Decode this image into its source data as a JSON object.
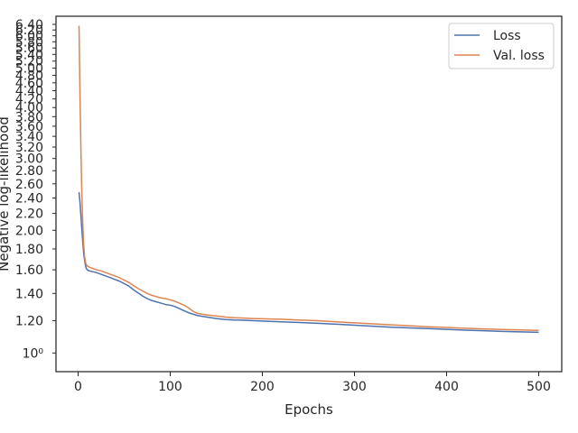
{
  "chart_data": {
    "type": "line",
    "xlabel": "Epochs",
    "ylabel": "Negative log-likelihood",
    "x_scale": "linear",
    "y_scale": "log",
    "xlim": [
      -24,
      525
    ],
    "ylim": [
      0.9,
      6.7
    ],
    "x_ticks": [
      0,
      100,
      200,
      300,
      400,
      500
    ],
    "x_tick_labels": [
      "0",
      "100",
      "200",
      "300",
      "400",
      "500"
    ],
    "y_ticks": [
      1.0,
      1.2,
      1.4,
      1.6,
      1.8,
      2.0,
      2.2,
      2.4,
      2.6,
      2.8,
      3.0,
      3.2,
      3.4,
      3.6,
      3.8,
      4.0,
      4.2,
      4.4,
      4.6,
      4.8,
      5.0,
      5.2,
      5.4,
      5.6,
      5.8,
      6.0,
      6.2,
      6.4
    ],
    "y_tick_labels": [
      "10⁰",
      "1.20",
      "1.40",
      "1.60",
      "1.80",
      "2.00",
      "2.20",
      "2.40",
      "2.60",
      "2.80",
      "3.00",
      "3.20",
      "3.40",
      "3.60",
      "3.80",
      "4.00",
      "4.20",
      "4.40",
      "4.60",
      "4.80",
      "5.00",
      "5.20",
      "5.40",
      "5.60",
      "5.80",
      "6.00",
      "6.20",
      "6.40"
    ],
    "grid": false,
    "legend_position": "top-right",
    "series": [
      {
        "name": "Loss",
        "color": "#4c72b0",
        "x": [
          1,
          2,
          3,
          4,
          5,
          6,
          7,
          8,
          9,
          10,
          11,
          12,
          15,
          20,
          25,
          30,
          35,
          40,
          45,
          50,
          55,
          60,
          65,
          70,
          75,
          80,
          85,
          90,
          95,
          100,
          105,
          110,
          115,
          120,
          125,
          130,
          140,
          150,
          160,
          170,
          180,
          190,
          200,
          220,
          240,
          260,
          280,
          300,
          320,
          340,
          360,
          380,
          400,
          420,
          440,
          460,
          480,
          500
        ],
        "y": [
          2.48,
          2.35,
          2.18,
          2.02,
          1.88,
          1.76,
          1.69,
          1.64,
          1.61,
          1.6,
          1.595,
          1.59,
          1.585,
          1.575,
          1.56,
          1.545,
          1.53,
          1.515,
          1.5,
          1.48,
          1.46,
          1.43,
          1.405,
          1.38,
          1.36,
          1.345,
          1.335,
          1.325,
          1.315,
          1.31,
          1.3,
          1.285,
          1.27,
          1.255,
          1.245,
          1.235,
          1.225,
          1.215,
          1.208,
          1.205,
          1.203,
          1.2,
          1.198,
          1.193,
          1.188,
          1.183,
          1.177,
          1.17,
          1.163,
          1.157,
          1.152,
          1.148,
          1.143,
          1.138,
          1.134,
          1.13,
          1.127,
          1.124
        ]
      },
      {
        "name": "Val. loss",
        "color": "#dd8452",
        "x": [
          1,
          2,
          3,
          4,
          5,
          6,
          7,
          8,
          9,
          10,
          11,
          12,
          15,
          20,
          25,
          30,
          35,
          40,
          45,
          50,
          55,
          60,
          65,
          70,
          75,
          80,
          85,
          90,
          95,
          100,
          105,
          110,
          115,
          120,
          125,
          130,
          140,
          150,
          160,
          170,
          180,
          190,
          200,
          220,
          240,
          260,
          280,
          300,
          320,
          340,
          360,
          380,
          400,
          420,
          440,
          460,
          480,
          500
        ],
        "y": [
          6.35,
          4.4,
          3.2,
          2.5,
          2.1,
          1.85,
          1.73,
          1.67,
          1.645,
          1.635,
          1.63,
          1.625,
          1.615,
          1.6,
          1.59,
          1.575,
          1.56,
          1.545,
          1.53,
          1.51,
          1.49,
          1.465,
          1.44,
          1.42,
          1.4,
          1.385,
          1.375,
          1.365,
          1.36,
          1.35,
          1.34,
          1.325,
          1.31,
          1.29,
          1.265,
          1.25,
          1.24,
          1.233,
          1.225,
          1.22,
          1.218,
          1.215,
          1.213,
          1.21,
          1.205,
          1.2,
          1.193,
          1.186,
          1.179,
          1.172,
          1.166,
          1.16,
          1.155,
          1.15,
          1.146,
          1.142,
          1.139,
          1.136
        ]
      }
    ]
  }
}
